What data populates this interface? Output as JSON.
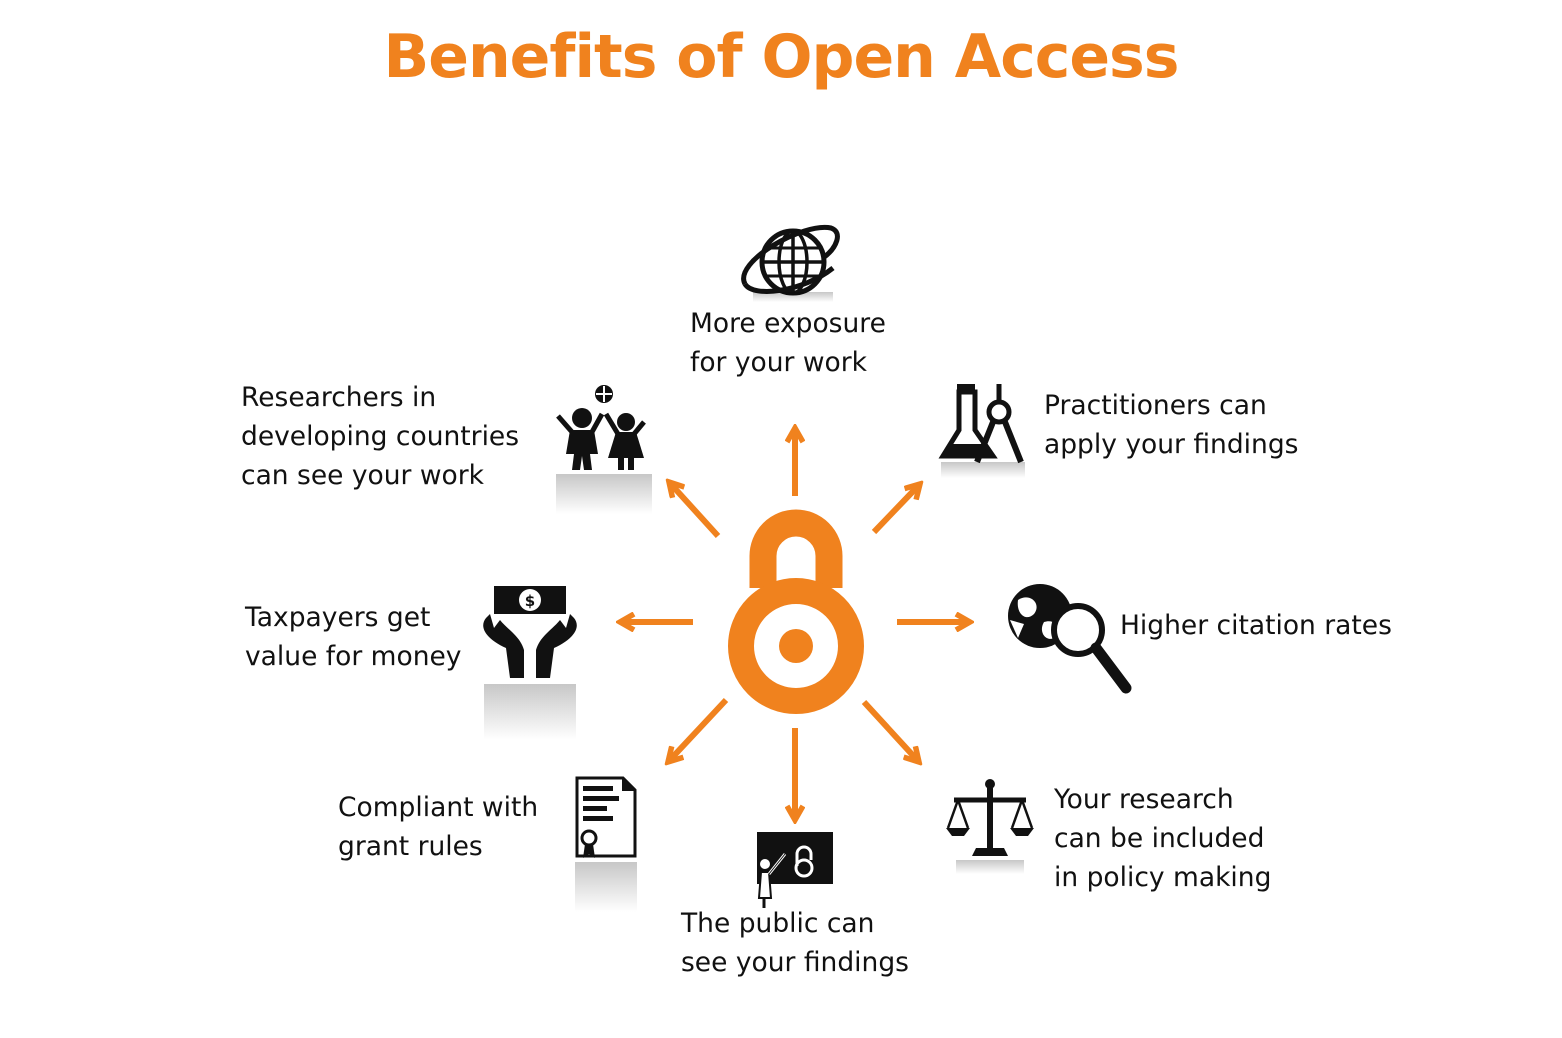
{
  "title": "Benefits of Open Access",
  "colors": {
    "accent": "#f0821e",
    "icon": "#111111",
    "text": "#111111"
  },
  "center_icon": "open-access-lock-icon",
  "benefits": [
    {
      "id": "exposure",
      "icon": "globe-orbit-icon",
      "lines": [
        "More exposure",
        "for your work"
      ]
    },
    {
      "id": "practitioners",
      "icon": "lab-flask-compass-icon",
      "lines": [
        "Practitioners can",
        "apply your findings"
      ]
    },
    {
      "id": "citation",
      "icon": "globe-magnifier-icon",
      "lines": [
        "Higher citation rates"
      ]
    },
    {
      "id": "policy",
      "icon": "scales-of-justice-icon",
      "lines": [
        "Your research",
        "can be included",
        "in policy making"
      ]
    },
    {
      "id": "public",
      "icon": "teacher-blackboard-icon",
      "lines": [
        "The public can",
        "see your findings"
      ]
    },
    {
      "id": "grant",
      "icon": "certificate-document-icon",
      "lines": [
        "Compliant with",
        "grant rules"
      ]
    },
    {
      "id": "taxpayers",
      "icon": "hands-money-icon",
      "lines": [
        "Taxpayers get",
        "value for money"
      ]
    },
    {
      "id": "developing",
      "icon": "children-globe-icon",
      "lines": [
        "Researchers in",
        "developing countries",
        "can see your work"
      ]
    }
  ]
}
